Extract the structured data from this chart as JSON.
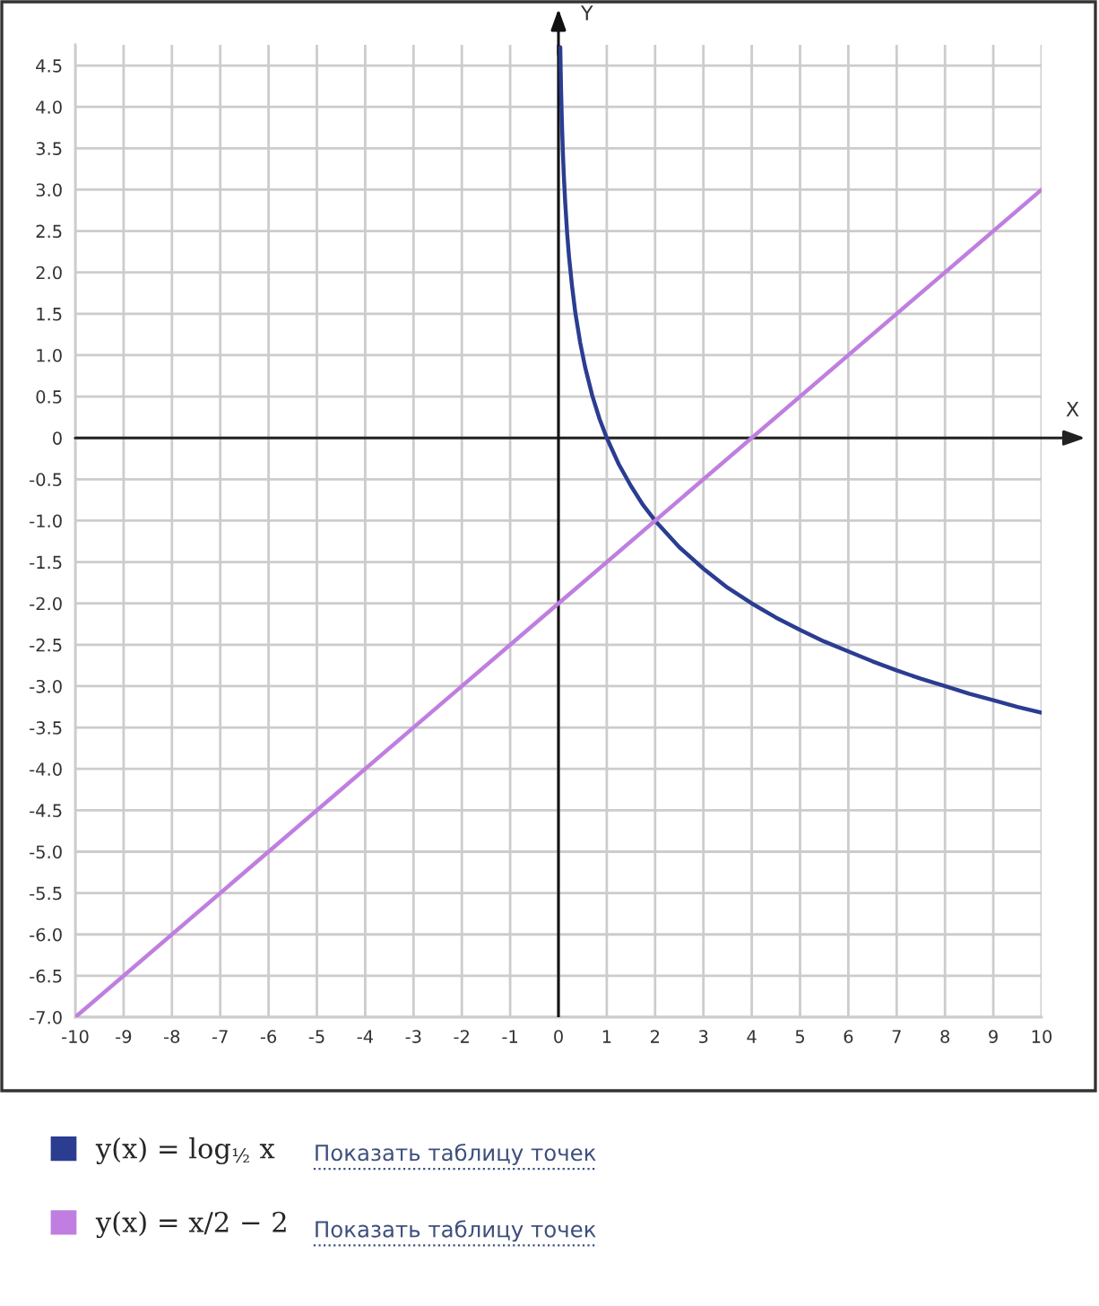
{
  "chart_data": {
    "type": "line",
    "xlabel": "X",
    "ylabel": "Y",
    "xlim": [
      -10,
      10
    ],
    "ylim": [
      -7,
      4.75
    ],
    "xticks": [
      -10,
      -9,
      -8,
      -7,
      -6,
      -5,
      -4,
      -3,
      -2,
      -1,
      0,
      1,
      2,
      3,
      4,
      5,
      6,
      7,
      8,
      9,
      10
    ],
    "yticks": [
      {
        "value": -7,
        "label": "-7.0"
      },
      -6.5,
      {
        "value": -6,
        "label": "-6.0"
      },
      -5.5,
      {
        "value": -5,
        "label": "-5.0"
      },
      -4.5,
      {
        "value": -4,
        "label": "-4.0"
      },
      -3.5,
      {
        "value": -3,
        "label": "-3.0"
      },
      -2.5,
      {
        "value": -2,
        "label": "-2.0"
      },
      -1.5,
      {
        "value": -1,
        "label": "-1.0"
      },
      -0.5,
      0,
      0.5,
      {
        "value": 1,
        "label": "1.0"
      },
      1.5,
      {
        "value": 2,
        "label": "2.0"
      },
      2.5,
      {
        "value": 3,
        "label": "3.0"
      },
      3.5,
      {
        "value": 4,
        "label": "4.0"
      },
      4.5
    ],
    "grid": true,
    "legend": "bottom left",
    "series": [
      {
        "name": "y(x) = log$_{½}$ x",
        "color": "#2b3d91",
        "x": [
          0.038,
          0.045,
          0.055,
          0.07,
          0.09,
          0.11,
          0.14,
          0.18,
          0.22,
          0.28,
          0.35,
          0.45,
          0.55,
          0.7,
          0.85,
          1,
          1.25,
          1.5,
          1.75,
          2,
          2.5,
          3,
          3.5,
          4,
          4.5,
          5,
          5.5,
          6,
          6.5,
          7,
          7.5,
          8,
          8.5,
          9,
          9.5,
          10
        ],
        "values": [
          4.72,
          4.47,
          4.18,
          3.84,
          3.47,
          3.18,
          2.84,
          2.47,
          2.18,
          1.84,
          1.51,
          1.15,
          0.86,
          0.51,
          0.23,
          0,
          -0.32,
          -0.58,
          -0.81,
          -1,
          -1.32,
          -1.58,
          -1.81,
          -2,
          -2.17,
          -2.32,
          -2.46,
          -2.58,
          -2.7,
          -2.81,
          -2.91,
          -3,
          -3.09,
          -3.17,
          -3.25,
          -3.32
        ]
      },
      {
        "name": "y(x) = x/2 − 2",
        "color": "#c07ee0",
        "x": [
          -10,
          0,
          10
        ],
        "values": [
          -7,
          -2,
          3
        ]
      }
    ],
    "annotations": [
      "Показать таблицу точек",
      "Показать таблицу точек"
    ]
  }
}
